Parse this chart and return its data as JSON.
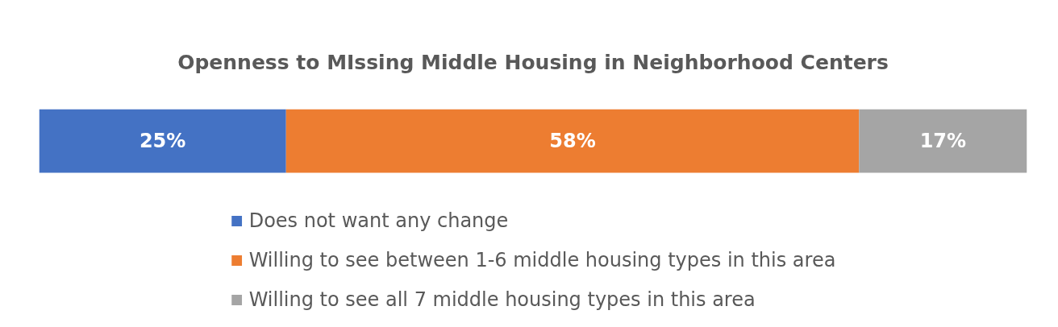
{
  "chart_data": {
    "type": "bar",
    "title": "Openness to MIssing Middle Housing in Neighborhood Centers",
    "orientation": "horizontal",
    "stacked": true,
    "categories": [
      null
    ],
    "series": [
      {
        "name": "Does not want any change",
        "color": "#4472c4",
        "values": [
          25
        ],
        "value_labels": [
          "25%"
        ]
      },
      {
        "name": "Willing to see between 1-6 middle housing types in this area",
        "color": "#ed7d31",
        "values": [
          58
        ],
        "value_labels": [
          "58%"
        ]
      },
      {
        "name": "Willing to see all 7 middle housing types in this area",
        "color": "#a5a5a5",
        "values": [
          17
        ],
        "value_labels": [
          "17%"
        ]
      }
    ],
    "xlim": [
      0,
      100
    ],
    "tick_labels": false,
    "grid": false,
    "legend": "bottom"
  }
}
